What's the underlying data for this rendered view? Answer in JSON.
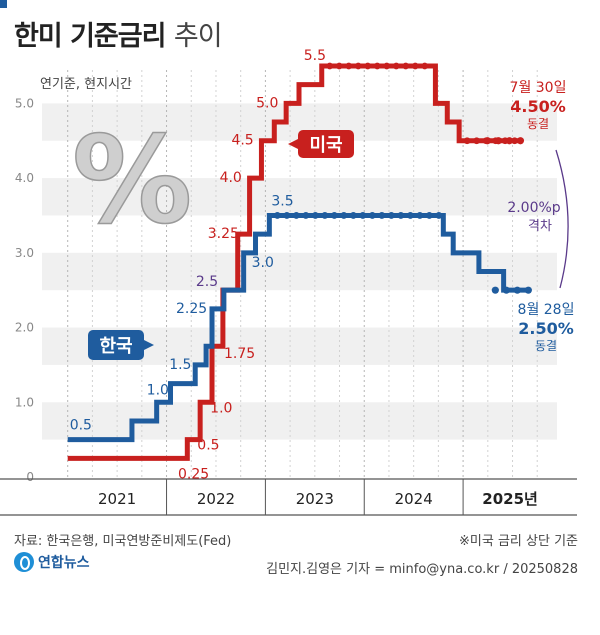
{
  "title": "한미 기준금리",
  "title_suffix": "추이",
  "subtitle": "연기준, 현지시간",
  "percent_symbol": "%",
  "chart_data": {
    "type": "line",
    "step": true,
    "ylim": [
      0,
      5.5
    ],
    "yticks": [
      "0",
      "1.0",
      "2.0",
      "3.0",
      "4.0",
      "5.0"
    ],
    "year_labels": [
      "2021",
      "2022",
      "2023",
      "2024",
      "2025년"
    ],
    "series": [
      {
        "name": "미국",
        "color": "#c8201e",
        "points": [
          {
            "x": 2021.0,
            "y": 0.25
          },
          {
            "x": 2022.21,
            "y": 0.5,
            "label": "0.5"
          },
          {
            "x": 2022.34,
            "y": 1.0,
            "label": "1.0"
          },
          {
            "x": 2022.46,
            "y": 1.75,
            "label": "1.75"
          },
          {
            "x": 2022.57,
            "y": 2.5
          },
          {
            "x": 2022.72,
            "y": 3.25,
            "label": "3.25"
          },
          {
            "x": 2022.84,
            "y": 4.0,
            "label": "4.0"
          },
          {
            "x": 2022.96,
            "y": 4.5,
            "label": "4.5"
          },
          {
            "x": 2023.09,
            "y": 4.75
          },
          {
            "x": 2023.21,
            "y": 5.0,
            "label": "5.0"
          },
          {
            "x": 2023.34,
            "y": 5.25
          },
          {
            "x": 2023.57,
            "y": 5.5,
            "label": "5.5"
          },
          {
            "x": 2024.72,
            "y": 5.0
          },
          {
            "x": 2024.84,
            "y": 4.75
          },
          {
            "x": 2024.96,
            "y": 4.5
          },
          {
            "x": 2025.58,
            "y": 4.5
          }
        ],
        "start_label": "0.25",
        "tag": "미국",
        "end_label": {
          "date": "7월 30일",
          "value": "4.50%",
          "status": "동결"
        }
      },
      {
        "name": "한국",
        "color": "#1f5c9e",
        "points": [
          {
            "x": 2021.0,
            "y": 0.5,
            "label": "0.5"
          },
          {
            "x": 2021.65,
            "y": 0.75
          },
          {
            "x": 2021.9,
            "y": 1.0,
            "label": "1.0"
          },
          {
            "x": 2022.04,
            "y": 1.25
          },
          {
            "x": 2022.29,
            "y": 1.5,
            "label": "1.5"
          },
          {
            "x": 2022.4,
            "y": 1.75
          },
          {
            "x": 2022.46,
            "y": 2.25,
            "label": "2.25"
          },
          {
            "x": 2022.58,
            "y": 2.5,
            "label": "2.5"
          },
          {
            "x": 2022.78,
            "y": 3.0,
            "label": "3.0"
          },
          {
            "x": 2022.9,
            "y": 3.25
          },
          {
            "x": 2023.04,
            "y": 3.5,
            "label": "3.5"
          },
          {
            "x": 2024.8,
            "y": 3.25
          },
          {
            "x": 2024.9,
            "y": 3.0
          },
          {
            "x": 2025.16,
            "y": 2.75
          },
          {
            "x": 2025.41,
            "y": 2.5
          },
          {
            "x": 2025.66,
            "y": 2.5
          }
        ],
        "tag": "한국",
        "end_label": {
          "date": "8월 28일",
          "value": "2.50%",
          "status": "동결"
        }
      }
    ],
    "gap_label": {
      "value": "2.00%p",
      "text": "격차"
    }
  },
  "footer": {
    "source": "자료: 한국은행, 미국연방준비제도(Fed)",
    "note": "※미국 금리 상단 기준",
    "brand": "연합뉴스",
    "author": "김민지.김영은 기자 = minfo@yna.co.kr / 20250828"
  }
}
